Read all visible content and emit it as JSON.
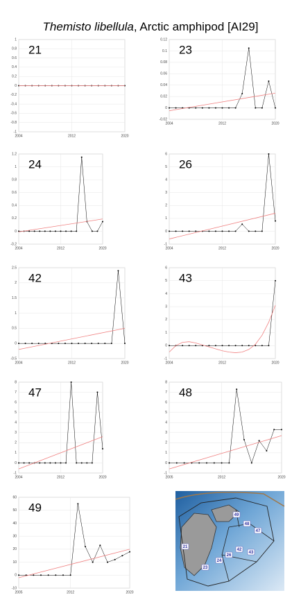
{
  "title_italic": "Themisto libellula",
  "title": ", Arctic amphipod [AI29]",
  "map": {
    "labels": [
      "49",
      "48",
      "47",
      "21",
      "26",
      "42",
      "43",
      "24",
      "23"
    ]
  },
  "chart_data": [
    {
      "type": "line",
      "title": "21",
      "x": [
        2004,
        2005,
        2006,
        2007,
        2008,
        2009,
        2010,
        2011,
        2012,
        2013,
        2014,
        2015,
        2016,
        2017,
        2018,
        2019,
        2020
      ],
      "xlim": [
        2004,
        2020
      ],
      "xticks": [
        2004,
        2012,
        2020
      ],
      "ylim": [
        -1,
        1
      ],
      "yticks": [
        -1,
        -0.8,
        -0.6,
        -0.4,
        -0.2,
        0,
        0.2,
        0.4,
        0.6,
        0.8,
        1
      ],
      "grid": true,
      "series": [
        {
          "color": "#000000",
          "values": [
            0,
            0,
            0,
            0,
            0,
            0,
            0,
            0,
            0,
            0,
            0,
            0,
            0,
            0,
            0,
            0,
            0
          ]
        },
        {
          "color": "#f08080",
          "x": [
            2004,
            2020
          ],
          "values": [
            0,
            0
          ]
        }
      ]
    },
    {
      "type": "line",
      "title": "23",
      "x": [
        2004,
        2005,
        2006,
        2007,
        2008,
        2009,
        2010,
        2011,
        2012,
        2013,
        2014,
        2015,
        2016,
        2017,
        2018,
        2019,
        2020
      ],
      "xlim": [
        2004,
        2020
      ],
      "xticks": [
        2004,
        2012,
        2020
      ],
      "ylim": [
        -0.02,
        0.12
      ],
      "yticks": [
        -0.02,
        0,
        0.02,
        0.04,
        0.06,
        0.08,
        0.1,
        0.12
      ],
      "grid": true,
      "series": [
        {
          "color": "#000000",
          "values": [
            0,
            0,
            0,
            0,
            0,
            0,
            0,
            0,
            0,
            0,
            0,
            0.025,
            0.105,
            0,
            0,
            0.047,
            0
          ]
        },
        {
          "color": "#f08080",
          "x": [
            2004,
            2020
          ],
          "values": [
            -0.005,
            0.026
          ]
        }
      ]
    },
    {
      "type": "line",
      "title": "24",
      "x": [
        2004,
        2005,
        2006,
        2007,
        2008,
        2009,
        2010,
        2011,
        2012,
        2013,
        2014,
        2015,
        2016,
        2017,
        2018,
        2019,
        2020
      ],
      "xlim": [
        2004,
        2020
      ],
      "xticks": [
        2004,
        2012,
        2020
      ],
      "ylim": [
        -0.2,
        1.2
      ],
      "yticks": [
        -0.2,
        0,
        0.2,
        0.4,
        0.6,
        0.8,
        1,
        1.2
      ],
      "grid": true,
      "series": [
        {
          "color": "#000000",
          "values": [
            0,
            0,
            0,
            0,
            0,
            0,
            0,
            0,
            0,
            0,
            0,
            0,
            1.15,
            0.15,
            0,
            0,
            0.15
          ]
        },
        {
          "color": "#f08080",
          "x": [
            2004,
            2020
          ],
          "values": [
            -0.01,
            0.19
          ]
        }
      ]
    },
    {
      "type": "line",
      "title": "26",
      "x": [
        2004,
        2005,
        2006,
        2007,
        2008,
        2009,
        2010,
        2011,
        2012,
        2013,
        2014,
        2015,
        2016,
        2017,
        2018,
        2019,
        2020
      ],
      "xlim": [
        2004,
        2020
      ],
      "xticks": [
        2004,
        2012,
        2020
      ],
      "ylim": [
        -1,
        6
      ],
      "yticks": [
        -1,
        0,
        1,
        2,
        3,
        4,
        5,
        6
      ],
      "grid": true,
      "series": [
        {
          "color": "#000000",
          "values": [
            0,
            0,
            0,
            0,
            0,
            0,
            0,
            0,
            0,
            0,
            0,
            0.55,
            0,
            0,
            0,
            6,
            0.8
          ]
        },
        {
          "color": "#f08080",
          "x": [
            2004,
            2020
          ],
          "values": [
            -0.6,
            1.4
          ]
        }
      ]
    },
    {
      "type": "line",
      "title": "42",
      "x": [
        2004,
        2005,
        2006,
        2007,
        2008,
        2009,
        2010,
        2011,
        2012,
        2013,
        2014,
        2015,
        2016,
        2017,
        2018,
        2019,
        2020
      ],
      "xlim": [
        2004,
        2020
      ],
      "xticks": [
        2004,
        2012,
        2020
      ],
      "ylim": [
        -0.5,
        2.5
      ],
      "yticks": [
        -0.5,
        0,
        0.5,
        1,
        1.5,
        2,
        2.5
      ],
      "grid": true,
      "series": [
        {
          "color": "#000000",
          "values": [
            0,
            0,
            0,
            0,
            0,
            0,
            0,
            0,
            0,
            0,
            0,
            0,
            0,
            0,
            0,
            2.4,
            0
          ]
        },
        {
          "color": "#f08080",
          "x": [
            2004,
            2020
          ],
          "values": [
            -0.2,
            0.5
          ]
        }
      ]
    },
    {
      "type": "line",
      "title": "43",
      "x": [
        2004,
        2005,
        2006,
        2007,
        2008,
        2009,
        2010,
        2011,
        2012,
        2013,
        2014,
        2015,
        2016,
        2017,
        2018,
        2019,
        2020
      ],
      "xlim": [
        2004,
        2020
      ],
      "xticks": [
        2004,
        2012,
        2020
      ],
      "ylim": [
        -1,
        6
      ],
      "yticks": [
        -1,
        0,
        1,
        2,
        3,
        4,
        5,
        6
      ],
      "grid": true,
      "series": [
        {
          "color": "#000000",
          "values": [
            0,
            0,
            0,
            0,
            0,
            0,
            0,
            0,
            0,
            0,
            0,
            0,
            0,
            0,
            0,
            0,
            5
          ]
        },
        {
          "color": "#f08080",
          "values": [
            -0.5,
            0,
            0.25,
            0.3,
            0.2,
            0.05,
            -0.1,
            -0.25,
            -0.4,
            -0.5,
            -0.55,
            -0.5,
            -0.3,
            0.1,
            0.8,
            1.8,
            3.1
          ]
        }
      ]
    },
    {
      "type": "line",
      "title": "47",
      "x": [
        2004,
        2005,
        2006,
        2007,
        2008,
        2009,
        2010,
        2011,
        2012,
        2013,
        2014,
        2015,
        2016,
        2017,
        2018,
        2019,
        2020
      ],
      "xlim": [
        2004,
        2020
      ],
      "xticks": [
        2004,
        2012,
        2020
      ],
      "ylim": [
        -1,
        8
      ],
      "yticks": [
        -1,
        0,
        1,
        2,
        3,
        4,
        5,
        6,
        7,
        8
      ],
      "grid": true,
      "series": [
        {
          "color": "#000000",
          "values": [
            0,
            0,
            0,
            0,
            0,
            0,
            0,
            0,
            0,
            0,
            8,
            0,
            0,
            0,
            0,
            7,
            1.4
          ]
        },
        {
          "color": "#f08080",
          "x": [
            2004,
            2020
          ],
          "values": [
            -0.6,
            2.6
          ]
        }
      ]
    },
    {
      "type": "line",
      "title": "48",
      "x": [
        2005,
        2006,
        2007,
        2008,
        2009,
        2010,
        2011,
        2012,
        2013,
        2014,
        2015,
        2016,
        2017,
        2018,
        2019,
        2020
      ],
      "xlim": [
        2005,
        2020
      ],
      "xticks": [
        2005,
        2012,
        2020
      ],
      "ylim": [
        -1,
        8
      ],
      "yticks": [
        -1,
        0,
        1,
        2,
        3,
        4,
        5,
        6,
        7,
        8
      ],
      "grid": true,
      "series": [
        {
          "color": "#000000",
          "values": [
            0,
            0,
            0,
            0,
            0,
            0,
            0,
            0,
            0,
            7.3,
            2.3,
            0,
            2.2,
            1.2,
            3.3,
            3.3
          ]
        },
        {
          "color": "#f08080",
          "x": [
            2005,
            2020
          ],
          "values": [
            -0.6,
            2.7
          ]
        }
      ]
    },
    {
      "type": "line",
      "title": "49",
      "x": [
        2005,
        2006,
        2007,
        2008,
        2009,
        2010,
        2011,
        2012,
        2013,
        2014,
        2015,
        2016,
        2017,
        2018,
        2019,
        2020
      ],
      "xlim": [
        2005,
        2020
      ],
      "xticks": [
        2005,
        2012,
        2020
      ],
      "ylim": [
        -10,
        60
      ],
      "yticks": [
        -10,
        0,
        10,
        20,
        30,
        40,
        50,
        60
      ],
      "grid": true,
      "series": [
        {
          "color": "#000000",
          "values": [
            0,
            0,
            0,
            0,
            0,
            0,
            0,
            0,
            55,
            22,
            10,
            23,
            10,
            12,
            15,
            18
          ]
        },
        {
          "color": "#f08080",
          "x": [
            2005,
            2020
          ],
          "values": [
            -2,
            20
          ]
        }
      ]
    }
  ]
}
